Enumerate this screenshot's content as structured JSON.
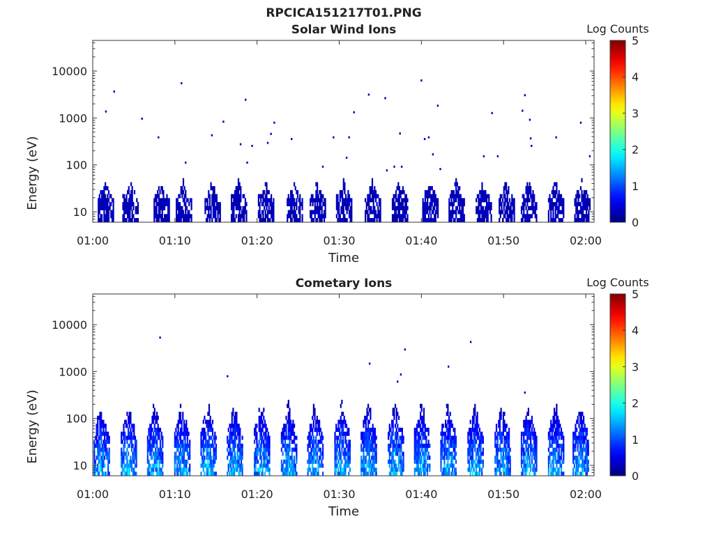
{
  "figure": {
    "title": "RPCICA151217T01.PNG"
  },
  "chart_data": [
    {
      "type": "heatmap",
      "title": "Solar Wind Ions",
      "xlabel": "Time",
      "ylabel": "Energy (eV)",
      "y_scale": "log",
      "ylim": [
        6,
        45000
      ],
      "xlim": [
        "01:00",
        "02:00"
      ],
      "x_ticks": [
        "01:00",
        "01:10",
        "01:20",
        "01:30",
        "01:40",
        "01:50",
        "02:00"
      ],
      "y_ticks": [
        "10",
        "100",
        "1000",
        "10000"
      ],
      "colorbar": {
        "label": "Log Counts",
        "range": [
          0,
          5
        ],
        "ticks": [
          "0",
          "1",
          "2",
          "3",
          "4",
          "5"
        ],
        "colormap": "jet"
      },
      "bursts_min": [
        1.5,
        4.5,
        8.3,
        11.0,
        14.5,
        17.7,
        21.0,
        24.5,
        27.3,
        30.5,
        34.0,
        37.3,
        41.0,
        44.2,
        47.5,
        50.3,
        53.0,
        56.3,
        59.5
      ],
      "burst_energy_range_eV": [
        6,
        45
      ],
      "burst_level": 0.4,
      "scatter_points": [
        {
          "t": 1.5,
          "e": 1350,
          "v": 0.3
        },
        {
          "t": 2.5,
          "e": 3600,
          "v": 0.3
        },
        {
          "t": 5.9,
          "e": 950,
          "v": 0.3
        },
        {
          "t": 7.9,
          "e": 380,
          "v": 0.3
        },
        {
          "t": 10.7,
          "e": 5400,
          "v": 0.3
        },
        {
          "t": 11.2,
          "e": 110,
          "v": 0.3
        },
        {
          "t": 14.4,
          "e": 420,
          "v": 0.3
        },
        {
          "t": 15.8,
          "e": 820,
          "v": 0.3
        },
        {
          "t": 17.9,
          "e": 270,
          "v": 0.3
        },
        {
          "t": 18.5,
          "e": 2400,
          "v": 0.3
        },
        {
          "t": 18.7,
          "e": 110,
          "v": 0.3
        },
        {
          "t": 19.3,
          "e": 250,
          "v": 0.3
        },
        {
          "t": 21.2,
          "e": 290,
          "v": 0.3
        },
        {
          "t": 21.6,
          "e": 450,
          "v": 0.3
        },
        {
          "t": 22.0,
          "e": 780,
          "v": 0.3
        },
        {
          "t": 24.1,
          "e": 350,
          "v": 0.3
        },
        {
          "t": 27.9,
          "e": 90,
          "v": 0.3
        },
        {
          "t": 29.2,
          "e": 380,
          "v": 0.3
        },
        {
          "t": 30.8,
          "e": 140,
          "v": 0.3
        },
        {
          "t": 31.1,
          "e": 380,
          "v": 0.3
        },
        {
          "t": 31.7,
          "e": 1300,
          "v": 0.3
        },
        {
          "t": 33.5,
          "e": 3100,
          "v": 0.3
        },
        {
          "t": 35.5,
          "e": 2600,
          "v": 0.3
        },
        {
          "t": 35.7,
          "e": 75,
          "v": 0.3
        },
        {
          "t": 36.6,
          "e": 90,
          "v": 0.3
        },
        {
          "t": 37.3,
          "e": 460,
          "v": 0.3
        },
        {
          "t": 37.5,
          "e": 90,
          "v": 0.3
        },
        {
          "t": 39.9,
          "e": 6200,
          "v": 0.3
        },
        {
          "t": 40.3,
          "e": 350,
          "v": 0.3
        },
        {
          "t": 40.8,
          "e": 380,
          "v": 0.3
        },
        {
          "t": 41.3,
          "e": 165,
          "v": 0.3
        },
        {
          "t": 41.9,
          "e": 1800,
          "v": 0.3
        },
        {
          "t": 42.2,
          "e": 80,
          "v": 0.3
        },
        {
          "t": 47.5,
          "e": 150,
          "v": 0.3
        },
        {
          "t": 48.5,
          "e": 1250,
          "v": 0.3
        },
        {
          "t": 49.2,
          "e": 150,
          "v": 0.3
        },
        {
          "t": 52.2,
          "e": 1400,
          "v": 0.3
        },
        {
          "t": 52.5,
          "e": 3000,
          "v": 0.3
        },
        {
          "t": 53.1,
          "e": 900,
          "v": 0.3
        },
        {
          "t": 53.2,
          "e": 360,
          "v": 0.3
        },
        {
          "t": 53.3,
          "e": 250,
          "v": 0.3
        },
        {
          "t": 56.3,
          "e": 380,
          "v": 0.3
        },
        {
          "t": 59.3,
          "e": 780,
          "v": 0.3
        },
        {
          "t": 60.4,
          "e": 150,
          "v": 0.3
        }
      ]
    },
    {
      "type": "heatmap",
      "title": "Cometary Ions",
      "xlabel": "Time",
      "ylabel": "Energy (eV)",
      "y_scale": "log",
      "ylim": [
        6,
        45000
      ],
      "xlim": [
        "01:00",
        "02:00"
      ],
      "x_ticks": [
        "01:00",
        "01:10",
        "01:20",
        "01:30",
        "01:40",
        "01:50",
        "02:00"
      ],
      "y_ticks": [
        "10",
        "100",
        "1000",
        "10000"
      ],
      "colorbar": {
        "label": "Log Counts",
        "range": [
          0,
          5
        ],
        "ticks": [
          "0",
          "1",
          "2",
          "3",
          "4",
          "5"
        ],
        "colormap": "jet"
      },
      "bursts_min": [
        1.0,
        4.3,
        7.5,
        10.8,
        14.0,
        17.2,
        20.5,
        23.8,
        27.0,
        30.3,
        33.5,
        36.8,
        40.0,
        43.2,
        46.5,
        49.8,
        53.0,
        56.3,
        59.3
      ],
      "burst_energy_range_eV": [
        6,
        250
      ],
      "burst_peak_level": 1.9,
      "scatter_points": [
        {
          "t": 8.1,
          "e": 5200,
          "v": 0.3
        },
        {
          "t": 16.3,
          "e": 780,
          "v": 0.3
        },
        {
          "t": 33.6,
          "e": 1450,
          "v": 0.3
        },
        {
          "t": 37.0,
          "e": 600,
          "v": 0.3
        },
        {
          "t": 37.4,
          "e": 850,
          "v": 0.3
        },
        {
          "t": 37.9,
          "e": 2900,
          "v": 0.3
        },
        {
          "t": 43.2,
          "e": 1250,
          "v": 0.3
        },
        {
          "t": 45.9,
          "e": 4200,
          "v": 0.3
        },
        {
          "t": 52.5,
          "e": 350,
          "v": 0.3
        }
      ]
    }
  ]
}
